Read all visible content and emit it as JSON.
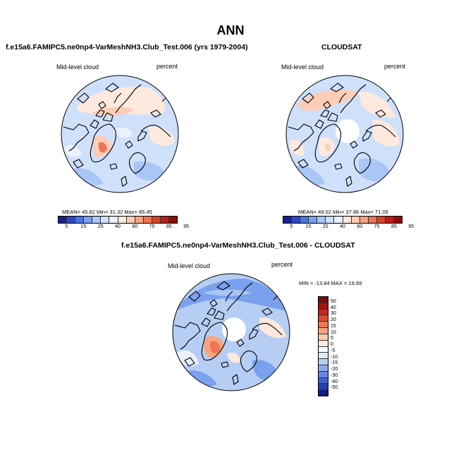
{
  "title": "ANN",
  "panels": [
    {
      "id": "model",
      "title": "f.e15a6.FAMIPC5.ne0np4-VarMeshNH3.Club_Test.006 (yrs 1979-2004)",
      "variable": "Mid-level cloud",
      "units": "percent",
      "stats": "MEAN=  45.82  Min=  31.32  Max=  85.45"
    },
    {
      "id": "obs",
      "title": "CLOUDSAT",
      "variable": "Mid-level cloud",
      "units": "percent",
      "stats": "MEAN=  49.02  Min=  37.86  Max=  71.05"
    },
    {
      "id": "diff",
      "title": "f.e15a6.FAMIPC5.ne0np4-VarMeshNH3.Club_Test.006 - CLOUDSAT",
      "variable": "Mid-level cloud",
      "units": "percent",
      "stats": "MIN = -13.84  MAX =  19.69"
    }
  ],
  "colorbar_abs": {
    "ticks": [
      "5",
      "15",
      "25",
      "40",
      "60",
      "75",
      "85",
      "95"
    ],
    "colors": [
      "#1a1f8c",
      "#2b48c6",
      "#4c74e0",
      "#7aa1ee",
      "#a8c6f6",
      "#cfe0fb",
      "#eaf1fd",
      "#fde9de",
      "#fbcdb6",
      "#f6a584",
      "#ec7554",
      "#d8432b",
      "#b81f17",
      "#8a0c0c"
    ]
  },
  "colorbar_diff": {
    "ticks": [
      "50",
      "40",
      "30",
      "20",
      "15",
      "10",
      "5",
      "0",
      "-5",
      "-10",
      "-15",
      "-20",
      "-30",
      "-40",
      "-50"
    ],
    "colors": [
      "#7a0a0a",
      "#a51212",
      "#c8261c",
      "#e04a32",
      "#ee7756",
      "#f6a182",
      "#fbc9b0",
      "#fde8dc",
      "#ffffff",
      "#dfe9fb",
      "#b6cdf4",
      "#8cacec",
      "#6488e0",
      "#3f61ce",
      "#2540ad",
      "#141c80"
    ]
  },
  "map_colors": {
    "base_abs": "#cfe0fb",
    "base_diff": "#b6cdf4",
    "pale_blue": "#eaf1fd",
    "light_blue": "#a8c6f6",
    "mid_blue": "#7aa1ee",
    "light_red": "#fde9de",
    "pink": "#fbcdb6",
    "salmon": "#f6a584",
    "red": "#ec7554",
    "missing": "#ffffff"
  }
}
